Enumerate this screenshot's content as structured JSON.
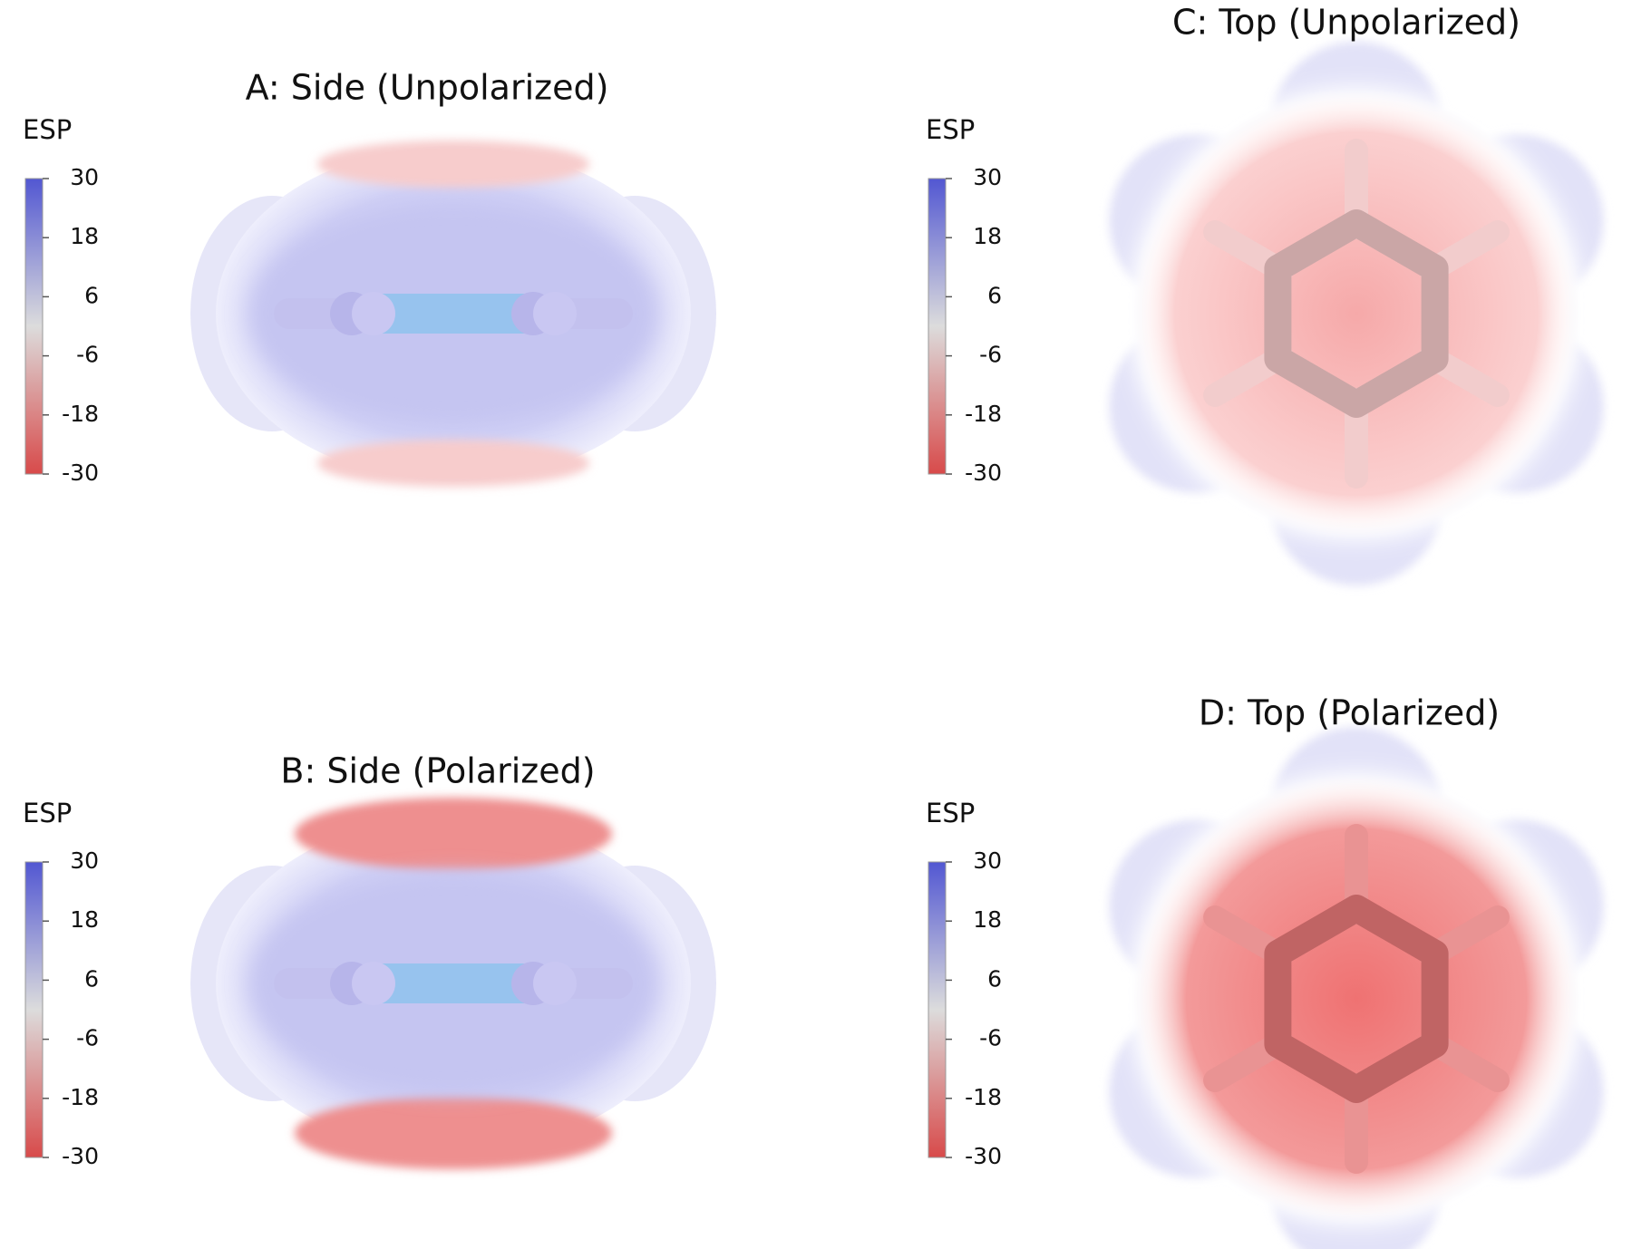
{
  "panels": [
    {
      "title": "A: Side (Unpolarized)",
      "colorbar": {
        "label": "ESP",
        "ticks": [
          30,
          18,
          6,
          -6,
          -18,
          -30
        ]
      }
    },
    {
      "title": "B: Side (Polarized)",
      "colorbar": {
        "label": "ESP",
        "ticks": [
          30,
          18,
          6,
          -6,
          -18,
          -30
        ]
      }
    },
    {
      "title": "C: Top (Unpolarized)",
      "colorbar": {
        "label": "ESP",
        "ticks": [
          30,
          18,
          6,
          -6,
          -18,
          -30
        ]
      }
    },
    {
      "title": "D: Top (Polarized)",
      "colorbar": {
        "label": "ESP",
        "ticks": [
          30,
          18,
          6,
          -6,
          -18,
          -30
        ]
      }
    }
  ]
}
